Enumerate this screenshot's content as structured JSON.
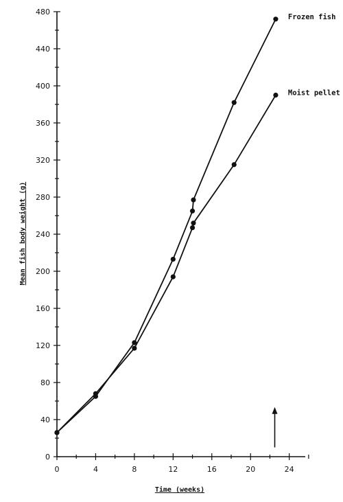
{
  "chart_data": {
    "type": "line",
    "title": "",
    "xlabel": "Time (weeks)",
    "ylabel": "Mean fish body weight (g)",
    "xlim": [
      0,
      26
    ],
    "ylim": [
      0,
      480
    ],
    "x_ticks": [
      0,
      4,
      8,
      12,
      16,
      20,
      24
    ],
    "y_ticks": [
      0,
      40,
      80,
      120,
      160,
      200,
      240,
      280,
      320,
      360,
      400,
      440,
      480
    ],
    "grid": false,
    "legend": "direct labels at line ends (right)",
    "series": [
      {
        "name": "Frozen fish",
        "x": [
          0,
          4,
          8,
          12,
          14,
          14.1,
          18.3,
          22.6
        ],
        "y": [
          26,
          65,
          123,
          213,
          265,
          277,
          382,
          472
        ]
      },
      {
        "name": "Moist pellet",
        "x": [
          0,
          4,
          8,
          12,
          14,
          14.1,
          18.3,
          22.6
        ],
        "y": [
          26,
          68,
          117,
          194,
          247,
          252,
          315,
          390
        ]
      }
    ],
    "annotations": [
      {
        "type": "arrow",
        "x": 22.5,
        "y_from": 10,
        "y_to": 52,
        "direction": "up"
      }
    ]
  }
}
